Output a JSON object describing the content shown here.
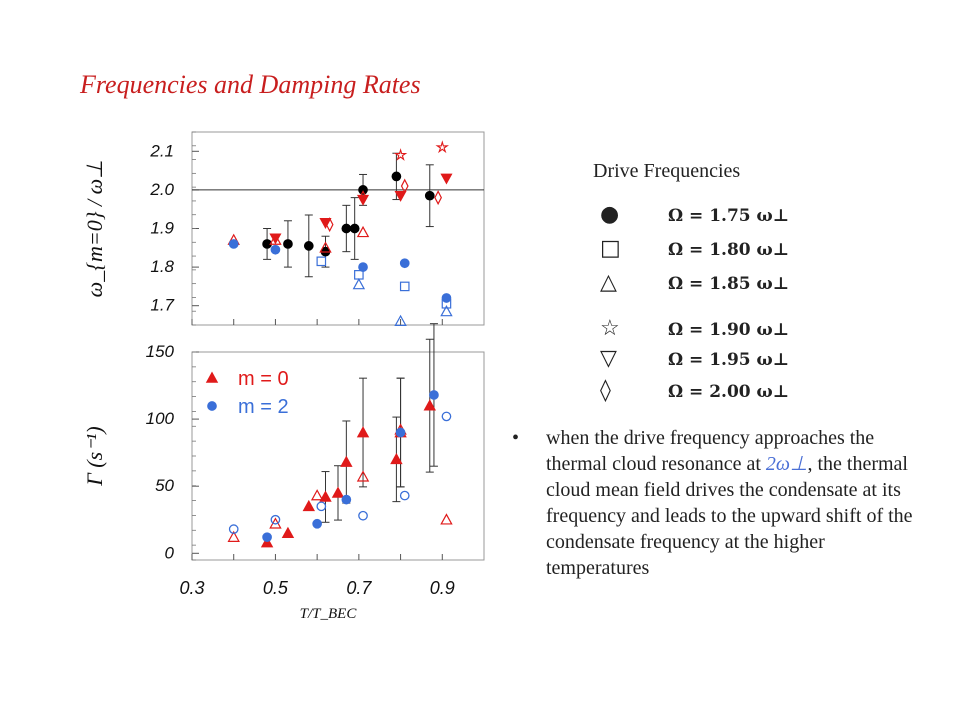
{
  "slide": {
    "title": "Frequencies and Damping Rates"
  },
  "legend_drive": {
    "title": "Drive Frequencies",
    "items": [
      {
        "symbol": "●",
        "label": "Ω = 1.75 ω⊥"
      },
      {
        "symbol": "□",
        "label": "Ω = 1.80 ω⊥"
      },
      {
        "symbol": "△",
        "label": "Ω = 1.85 ω⊥"
      },
      {
        "symbol": "☆",
        "label": "Ω = 1.90 ω⊥"
      },
      {
        "symbol": "▽",
        "label": "Ω = 1.95 ω⊥"
      },
      {
        "symbol": "◊",
        "label": "Ω = 2.00 ω⊥"
      }
    ]
  },
  "bullet": {
    "text_before": "when the drive frequency approaches the thermal cloud resonance at ",
    "symbol": "2ω⊥",
    "text_after": ", the thermal cloud mean field drives the condensate at its frequency and leads to the upward shift of the condensate frequency at the higher temperatures"
  },
  "colors": {
    "red": "#e01a1a",
    "blue": "#3a6fd8",
    "black": "#000000",
    "title": "#c81e1e"
  },
  "chart_data": [
    {
      "type": "scatter",
      "ylabel": "ω_{m=0} / ω⊥",
      "ylim": [
        1.65,
        2.15
      ],
      "xlim": [
        0.3,
        1.0
      ],
      "yticks": [
        "1.7",
        "1.8",
        "1.9",
        "2.0",
        "2.1"
      ],
      "reference_line": 2.0,
      "series": [
        {
          "color": "black",
          "marker": "circle",
          "points": [
            [
              0.48,
              1.86
            ],
            [
              0.53,
              1.86
            ],
            [
              0.58,
              1.855
            ],
            [
              0.62,
              1.84
            ],
            [
              0.67,
              1.9
            ],
            [
              0.69,
              1.9
            ],
            [
              0.71,
              2.0
            ],
            [
              0.79,
              2.035
            ],
            [
              0.87,
              1.985
            ]
          ]
        },
        {
          "color": "red",
          "marker": "triangle",
          "points": [
            [
              0.4,
              1.87
            ],
            [
              0.5,
              1.87
            ],
            [
              0.62,
              1.85
            ],
            [
              0.71,
              1.89
            ]
          ]
        },
        {
          "color": "red",
          "marker": "diamond",
          "points": [
            [
              0.63,
              1.91
            ],
            [
              0.71,
              1.98
            ],
            [
              0.81,
              2.01
            ],
            [
              0.89,
              1.98
            ]
          ]
        },
        {
          "color": "red",
          "marker": "star",
          "points": [
            [
              0.8,
              2.09
            ],
            [
              0.9,
              2.11
            ]
          ]
        },
        {
          "color": "red",
          "marker": "triangle-down",
          "points": [
            [
              0.71,
              1.975
            ],
            [
              0.8,
              1.985
            ],
            [
              0.91,
              2.03
            ],
            [
              0.5,
              1.875
            ],
            [
              0.62,
              1.915
            ]
          ]
        },
        {
          "color": "blue",
          "marker": "circle",
          "points": [
            [
              0.4,
              1.86
            ],
            [
              0.5,
              1.845
            ],
            [
              0.71,
              1.8
            ],
            [
              0.81,
              1.81
            ],
            [
              0.91,
              1.72
            ]
          ]
        },
        {
          "color": "blue",
          "marker": "square",
          "points": [
            [
              0.61,
              1.815
            ],
            [
              0.7,
              1.78
            ],
            [
              0.81,
              1.75
            ],
            [
              0.91,
              1.705
            ]
          ]
        },
        {
          "color": "blue",
          "marker": "triangle",
          "points": [
            [
              0.7,
              1.755
            ],
            [
              0.8,
              1.66
            ],
            [
              0.91,
              1.685
            ]
          ]
        }
      ]
    },
    {
      "type": "scatter",
      "ylabel": "Γ (s⁻¹)",
      "xlabel": "T/T_BEC",
      "ylim": [
        -5,
        150
      ],
      "xlim": [
        0.3,
        1.0
      ],
      "yticks": [
        "0",
        "50",
        "100",
        "150"
      ],
      "xticks": [
        "0.3",
        "0.5",
        "0.7",
        "0.9"
      ],
      "legend": [
        {
          "label": "m = 0",
          "color": "red",
          "marker": "triangle"
        },
        {
          "label": "m = 2",
          "color": "blue",
          "marker": "circle"
        }
      ],
      "series": [
        {
          "name": "m = 0",
          "color": "red",
          "marker": "triangle-filled",
          "points": [
            [
              0.48,
              8
            ],
            [
              0.53,
              15
            ],
            [
              0.58,
              35
            ],
            [
              0.62,
              42
            ],
            [
              0.65,
              45
            ],
            [
              0.67,
              68
            ],
            [
              0.71,
              90
            ],
            [
              0.79,
              70
            ],
            [
              0.8,
              90
            ],
            [
              0.87,
              110
            ]
          ]
        },
        {
          "name": "m = 0",
          "color": "red",
          "marker": "triangle-open",
          "points": [
            [
              0.4,
              12
            ],
            [
              0.5,
              22
            ],
            [
              0.6,
              43
            ],
            [
              0.71,
              57
            ],
            [
              0.8,
              92
            ],
            [
              0.91,
              25
            ]
          ]
        },
        {
          "name": "m = 2",
          "color": "blue",
          "marker": "circle-filled",
          "points": [
            [
              0.48,
              12
            ],
            [
              0.6,
              22
            ],
            [
              0.67,
              40
            ],
            [
              0.8,
              90
            ],
            [
              0.88,
              118
            ]
          ]
        },
        {
          "name": "m = 2",
          "color": "blue",
          "marker": "circle-open",
          "points": [
            [
              0.4,
              18
            ],
            [
              0.5,
              25
            ],
            [
              0.61,
              35
            ],
            [
              0.71,
              28
            ],
            [
              0.81,
              43
            ],
            [
              0.91,
              102
            ]
          ]
        }
      ]
    }
  ]
}
